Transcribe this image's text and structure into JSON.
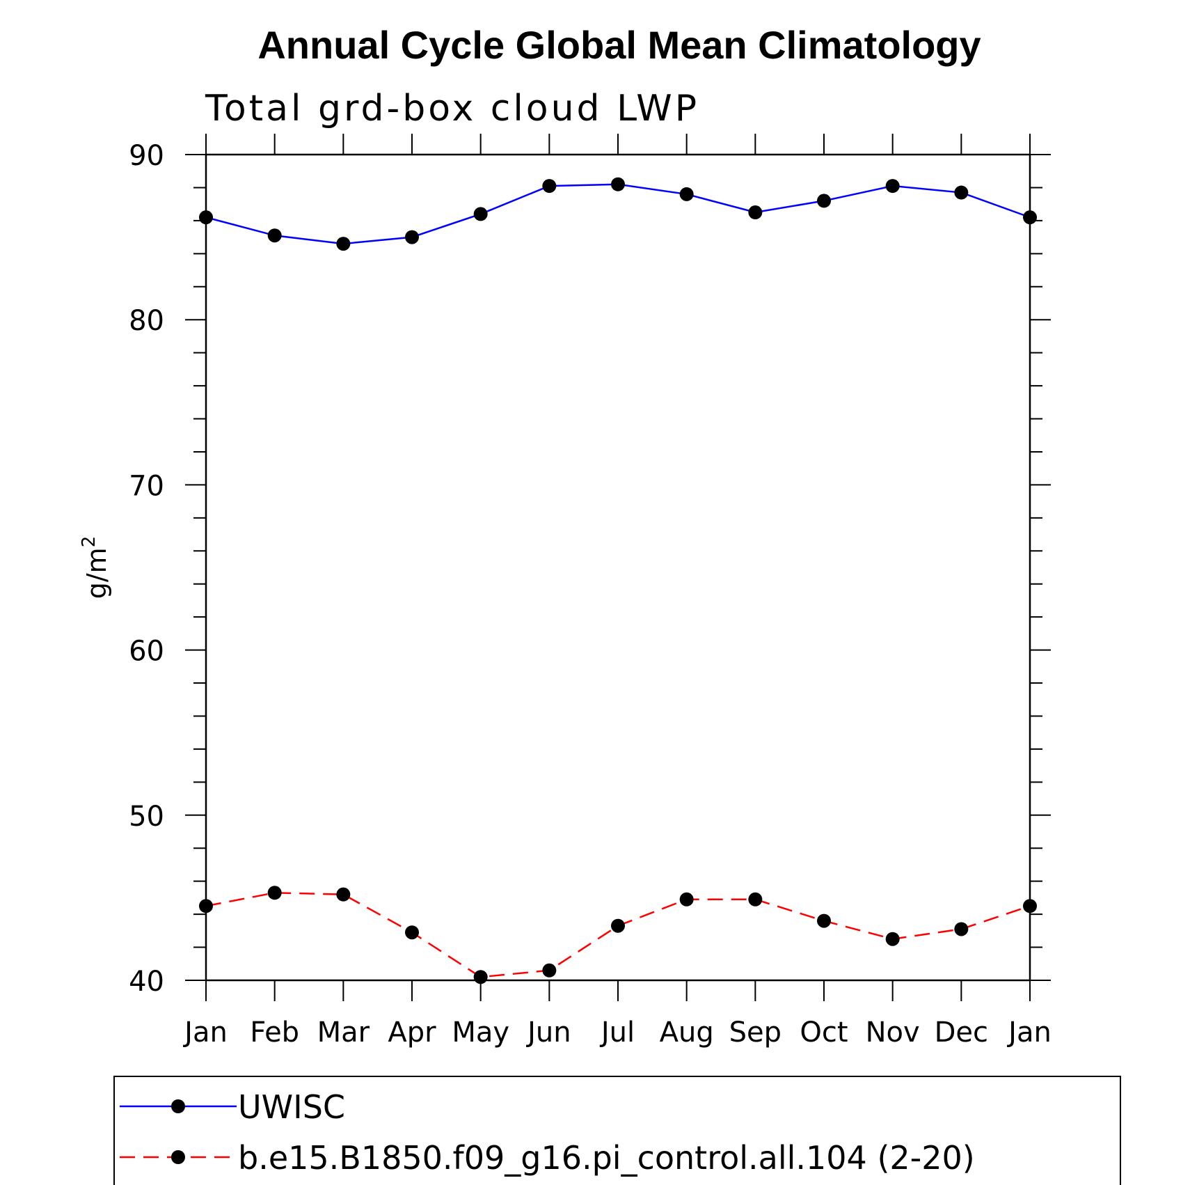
{
  "chart_data": {
    "type": "line",
    "title": "Annual Cycle Global Mean Climatology",
    "subtitle": "Total grd-box cloud LWP",
    "xlabel": "",
    "ylabel": "g/m",
    "ylabel_superscript": "2",
    "categories": [
      "Jan",
      "Feb",
      "Mar",
      "Apr",
      "May",
      "Jun",
      "Jul",
      "Aug",
      "Sep",
      "Oct",
      "Nov",
      "Dec",
      "Jan"
    ],
    "ylim": [
      40,
      90
    ],
    "yticks": [
      40,
      50,
      60,
      70,
      80,
      90
    ],
    "legend_position": "bottom",
    "series": [
      {
        "name": "UWISC",
        "color": "#0000ff",
        "dashed": false,
        "values": [
          86.2,
          85.1,
          84.6,
          85.0,
          86.4,
          88.1,
          88.2,
          87.6,
          86.5,
          87.2,
          88.1,
          87.7,
          86.2
        ]
      },
      {
        "name": "b.e15.B1850.f09_g16.pi_control.all.104 (2-20)",
        "color": "#ff0000",
        "dashed": true,
        "values": [
          44.5,
          45.3,
          45.2,
          42.9,
          40.2,
          40.6,
          43.3,
          44.9,
          44.9,
          43.6,
          42.5,
          43.1,
          44.5
        ]
      }
    ]
  }
}
